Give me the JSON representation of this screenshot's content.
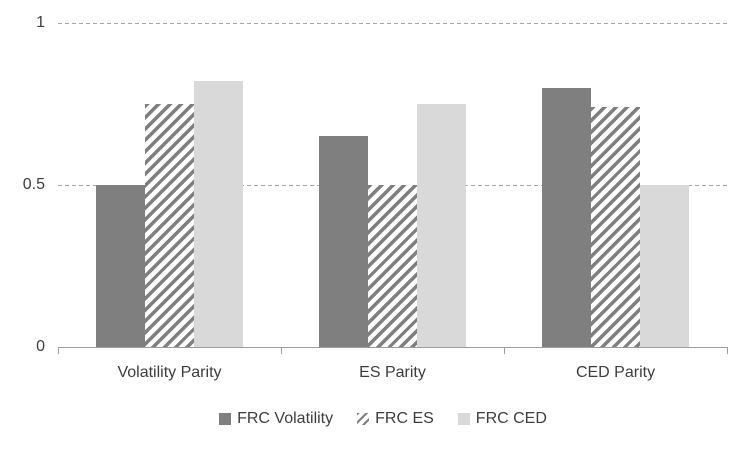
{
  "chart_data": {
    "type": "bar",
    "title": "",
    "categories": [
      "Volatility Parity",
      "ES Parity",
      "CED Parity"
    ],
    "series": [
      {
        "name": "FRC Volatility",
        "style": "solid_dark",
        "values": [
          0.5,
          0.65,
          0.8
        ]
      },
      {
        "name": "FRC ES",
        "style": "hatched",
        "values": [
          0.75,
          0.5,
          0.74
        ]
      },
      {
        "name": "FRC CED",
        "style": "solid_light",
        "values": [
          0.82,
          0.75,
          0.5
        ]
      }
    ],
    "y_axis": {
      "ticks": [
        "0",
        "0.5",
        "1"
      ],
      "tick_values": [
        0,
        0.5,
        1
      ],
      "range": [
        0,
        1
      ],
      "gridlines_at": [
        0.5,
        1
      ],
      "gridline_style": "dashed"
    },
    "x_axis": {
      "label": ""
    },
    "legend_position": "bottom",
    "grid": true,
    "colors": {
      "dark": "#7f7f7f",
      "light": "#d9d9d9",
      "hatch_stripe": "#7f7f7f",
      "hatch_bg": "#ffffff",
      "gridline": "#a6a6a6",
      "axis": "#9d9d9d",
      "text": "#3d3d3d"
    }
  }
}
